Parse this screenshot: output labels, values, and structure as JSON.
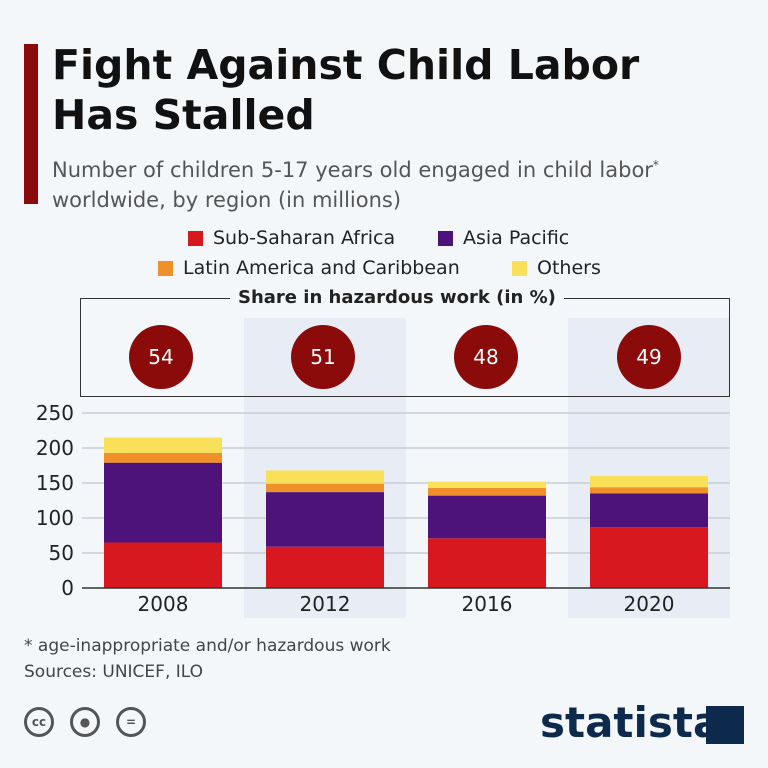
{
  "title": "Fight Against Child Labor Has Stalled",
  "subtitle": "Number of children 5-17 years old engaged in child labor",
  "subtitle_star": "*",
  "subtitle_rest": " worldwide, by region (in millions)",
  "hazard": {
    "title": "Share in hazardous work (in %)",
    "values": [
      "54",
      "51",
      "48",
      "49"
    ]
  },
  "footnote": "* age-inappropriate and/or hazardous work",
  "sources": "Sources: UNICEF, ILO",
  "license_icons": [
    "cc-icon",
    "attribution-icon",
    "no-derivatives-icon"
  ],
  "license_cc": "cc",
  "logo": "statista",
  "chart_data": {
    "type": "bar",
    "stacked": true,
    "categories": [
      "2008",
      "2012",
      "2016",
      "2020"
    ],
    "series": [
      {
        "name": "Sub-Saharan Africa",
        "color": "#d7191f",
        "values": [
          65,
          59,
          71,
          87
        ]
      },
      {
        "name": "Asia Pacific",
        "color": "#4e137a",
        "values": [
          114,
          78,
          61,
          48
        ]
      },
      {
        "name": "Latin America and Caribbean",
        "color": "#f0902a",
        "values": [
          14,
          12,
          11,
          9
        ]
      },
      {
        "name": "Others",
        "color": "#f8e05a",
        "values": [
          22,
          19,
          9,
          16
        ]
      }
    ],
    "ylim": [
      0,
      250
    ],
    "yticks": [
      "0",
      "50",
      "100",
      "150",
      "200",
      "250"
    ],
    "grid": true,
    "legend": "top"
  }
}
